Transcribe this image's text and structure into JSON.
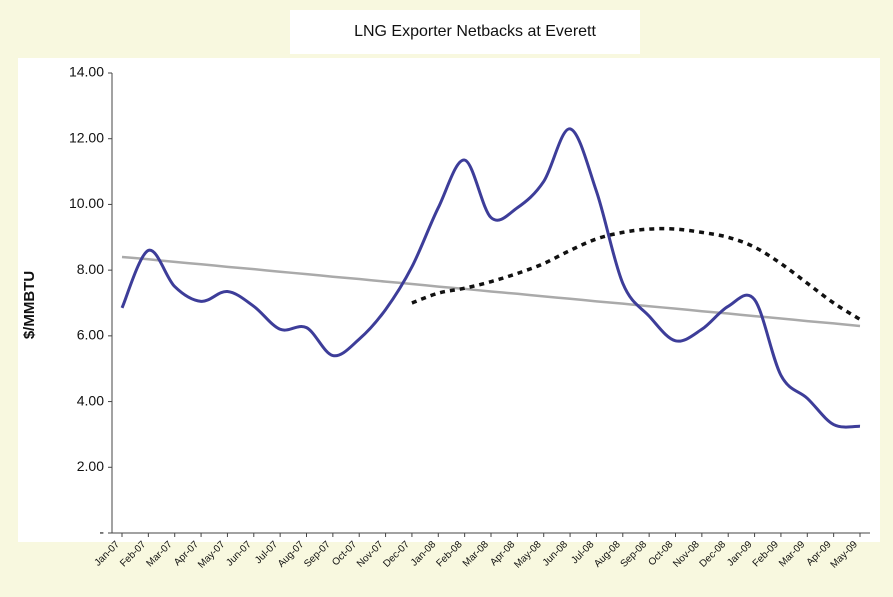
{
  "chart_data": {
    "type": "line",
    "title": "LNG Exporter Netbacks at Everett",
    "ylabel": "$/MMBTU",
    "categories": [
      "Jan-07",
      "Feb-07",
      "Mar-07",
      "Apr-07",
      "May-07",
      "Jun-07",
      "Jul-07",
      "Aug-07",
      "Sep-07",
      "Oct-07",
      "Nov-07",
      "Dec-07",
      "Jan-08",
      "Feb-08",
      "Mar-08",
      "Apr-08",
      "May-08",
      "Jun-08",
      "Jul-08",
      "Aug-08",
      "Sep-08",
      "Oct-08",
      "Nov-08",
      "Dec-08",
      "Jan-09",
      "Feb-09",
      "Mar-09",
      "Apr-09",
      "May-09"
    ],
    "series": [
      {
        "color": "#3d3d99",
        "style": "solid",
        "values": [
          6.85,
          8.6,
          7.5,
          7.05,
          7.35,
          6.9,
          6.2,
          6.25,
          5.4,
          5.9,
          6.8,
          8.1,
          9.9,
          11.35,
          9.6,
          9.9,
          10.7,
          12.3,
          10.4,
          7.6,
          6.6,
          5.85,
          6.2,
          6.9,
          7.1,
          4.8,
          4.1,
          3.3,
          3.25
        ]
      },
      {
        "color": "#111111",
        "style": "dotted",
        "values": [
          null,
          null,
          null,
          null,
          null,
          null,
          null,
          null,
          null,
          null,
          null,
          7.0,
          7.3,
          7.45,
          7.65,
          7.9,
          8.2,
          8.6,
          8.95,
          9.15,
          9.25,
          9.25,
          9.15,
          9.0,
          8.7,
          8.2,
          7.6,
          7.0,
          6.5
        ]
      },
      {
        "color": "#aaaaaa",
        "style": "solid",
        "values": [
          8.4,
          8.33,
          8.25,
          8.18,
          8.1,
          8.03,
          7.95,
          7.88,
          7.8,
          7.73,
          7.65,
          7.58,
          7.5,
          7.43,
          7.35,
          7.28,
          7.2,
          7.13,
          7.05,
          6.98,
          6.9,
          6.83,
          6.75,
          6.68,
          6.6,
          6.53,
          6.45,
          6.38,
          6.3
        ]
      }
    ],
    "ylim": [
      0,
      14
    ],
    "yticks": [
      {
        "value": 0,
        "label": "-"
      },
      {
        "value": 2,
        "label": "2.00"
      },
      {
        "value": 4,
        "label": "4.00"
      },
      {
        "value": 6,
        "label": "6.00"
      },
      {
        "value": 8,
        "label": "8.00"
      },
      {
        "value": 10,
        "label": "10.00"
      },
      {
        "value": 12,
        "label": "12.00"
      },
      {
        "value": 14,
        "label": "14.00"
      }
    ]
  }
}
